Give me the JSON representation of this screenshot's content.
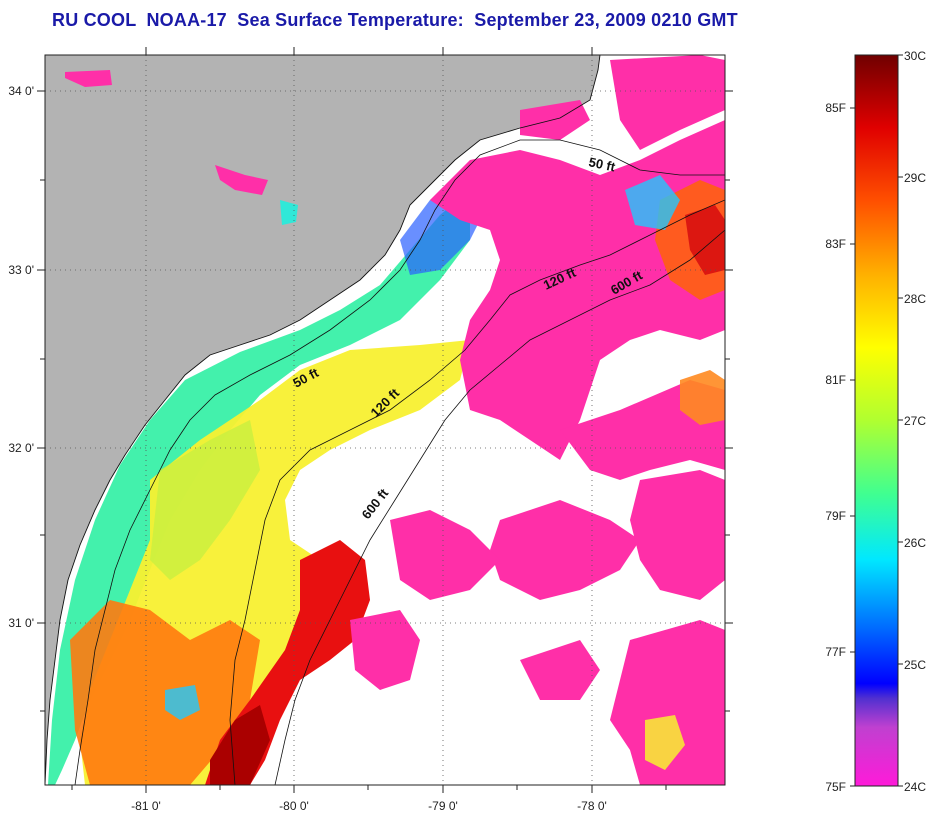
{
  "title": "RU COOL  NOAA-17  Sea Surface Temperature:  September 23, 2009 0210 GMT",
  "map": {
    "lat_labels": [
      "34 0'",
      "33 0'",
      "32 0'",
      "31 0'"
    ],
    "lon_labels": [
      "-81 0'",
      "-80 0'",
      "-79 0'",
      "-78 0'"
    ],
    "contour_labels": [
      "50 ft",
      "120 ft",
      "600 ft",
      "50 ft",
      "120 ft",
      "600 ft"
    ]
  },
  "colorbar": {
    "f_labels": [
      "85F",
      "83F",
      "81F",
      "79F",
      "77F",
      "75F"
    ],
    "c_labels": [
      "30C",
      "29C",
      "28C",
      "27C",
      "26C",
      "25C",
      "24C"
    ]
  },
  "colors": {
    "land": "#b3b3b3",
    "no_data": "#ffffff",
    "title": "#1a1aa8"
  }
}
